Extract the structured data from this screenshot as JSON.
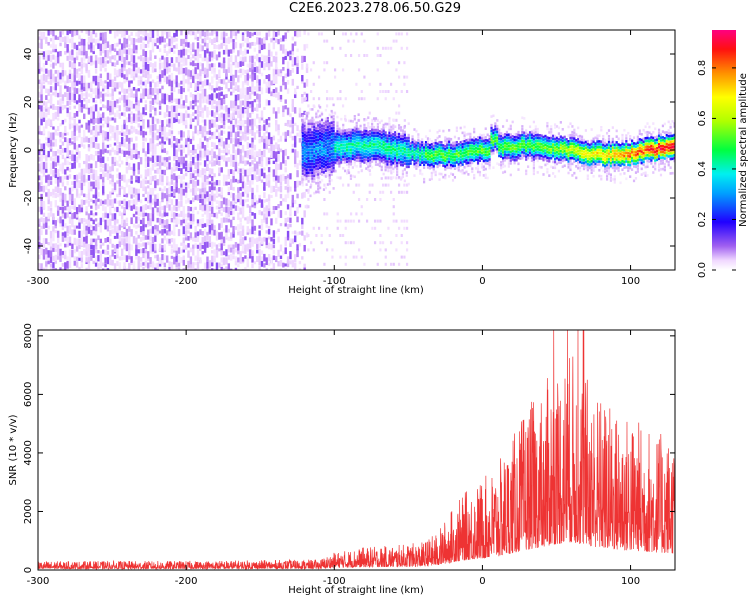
{
  "title": "C2E6.2023.278.06.50.G29",
  "chart_data": [
    {
      "type": "heatmap",
      "name": "spectrogram",
      "xlabel": "Height of straight line (km)",
      "ylabel": "Frequency (Hz)",
      "xlim": [
        -300,
        130
      ],
      "ylim": [
        -50,
        50
      ],
      "xticks": [
        -300,
        -200,
        -100,
        0,
        100
      ],
      "yticks": [
        -40,
        -20,
        0,
        20,
        40
      ],
      "colorbar": {
        "label": "Normalized spectral amplitude",
        "range": [
          0,
          0.95
        ],
        "ticks": [
          0.0,
          0.2,
          0.4,
          0.6,
          0.8
        ]
      },
      "grid": false,
      "regions": [
        {
          "x_range": [
            -300,
            -120
          ],
          "description_level": "noise",
          "freq_range": [
            -50,
            50
          ]
        },
        {
          "x_range": [
            -120,
            -100
          ],
          "freq_center": 0,
          "spread": 12
        },
        {
          "x_range": [
            -100,
            130
          ],
          "freq_center": 0,
          "spread": 5
        }
      ]
    },
    {
      "type": "line",
      "name": "snr",
      "xlabel": "Height of straight line (km)",
      "ylabel": "SNR (10 * v/v)",
      "xlim": [
        -300,
        130
      ],
      "ylim": [
        0,
        8200
      ],
      "xticks": [
        -300,
        -200,
        -100,
        0,
        100
      ],
      "yticks": [
        0,
        2000,
        4000,
        6000,
        8000
      ],
      "grid": false,
      "color": "#ee3333",
      "envelope": {
        "x": [
          -300,
          -200,
          -110,
          -100,
          -80,
          -60,
          -40,
          -30,
          -20,
          -10,
          0,
          10,
          20,
          30,
          40,
          50,
          60,
          70,
          80,
          90,
          100,
          110,
          120,
          130
        ],
        "y": [
          250,
          260,
          300,
          500,
          650,
          700,
          800,
          1100,
          1800,
          2300,
          2600,
          3000,
          3800,
          4600,
          5200,
          5900,
          6300,
          5600,
          5000,
          4600,
          4400,
          4200,
          3900,
          3800
        ]
      }
    }
  ]
}
